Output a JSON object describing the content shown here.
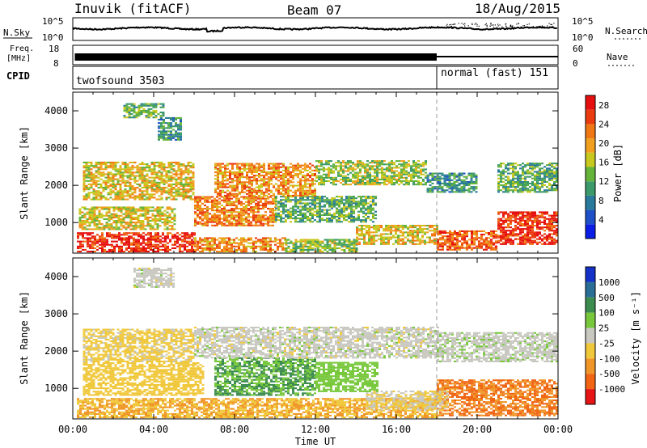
{
  "header": {
    "station": "Inuvik (fitACF)",
    "beam": "Beam 07",
    "date": "18/Aug/2015"
  },
  "nsky_panel": {
    "left_label": "N.Sky",
    "left_ticks": [
      "10^5",
      "10^0"
    ],
    "right_ticks": [
      "10^5",
      "10^0"
    ],
    "right_label": "N.Search"
  },
  "freq_panel": {
    "left_label_1": "Freq.",
    "left_label_2": "[MHz]",
    "left_ticks": [
      "18",
      "8"
    ],
    "right_ticks": [
      "60",
      "0"
    ],
    "right_label": "Nave"
  },
  "cpid_panel": {
    "label": "CPID",
    "modes": [
      {
        "name": "twofsound 3503",
        "start_hour": 0,
        "end_hour": 18
      },
      {
        "name": "normal (fast) 151",
        "start_hour": 18,
        "end_hour": 24
      }
    ]
  },
  "time_axis": {
    "label": "Time UT",
    "ticks": [
      "00:00",
      "04:00",
      "08:00",
      "12:00",
      "16:00",
      "20:00",
      "00:00"
    ],
    "range_hours": [
      0,
      24
    ]
  },
  "chart_data": [
    {
      "type": "heatmap",
      "name": "power-panel",
      "ylabel": "Slant Range [km]",
      "yticks": [
        "1000",
        "2000",
        "3000",
        "4000"
      ],
      "ylim": [
        180,
        4500
      ],
      "xlim_hours": [
        0,
        24
      ],
      "colorbar": {
        "label": "Power [dB]",
        "ticks": [
          "4",
          "8",
          "12",
          "16",
          "20",
          "24",
          "28"
        ],
        "range": [
          0,
          30
        ],
        "colors": [
          "#0a1ee6",
          "#1e50c8",
          "#2a7a9c",
          "#3c9a6a",
          "#64b43c",
          "#c8c81e",
          "#f0a01e",
          "#f07814",
          "#eb3c0f",
          "#e60f0f"
        ]
      },
      "bands": [
        {
          "t0": 0.2,
          "t1": 6.0,
          "r0": 200,
          "r1": 700,
          "v": 27
        },
        {
          "t0": 6.0,
          "t1": 10.5,
          "r0": 200,
          "r1": 600,
          "v": 21
        },
        {
          "t0": 10.5,
          "t1": 14.0,
          "r0": 200,
          "r1": 550,
          "v": 14
        },
        {
          "t0": 14.0,
          "t1": 18.0,
          "r0": 400,
          "r1": 900,
          "v": 18
        },
        {
          "t0": 18.0,
          "t1": 21.0,
          "r0": 250,
          "r1": 750,
          "v": 24
        },
        {
          "t0": 21.0,
          "t1": 24.0,
          "r0": 400,
          "r1": 1300,
          "v": 27
        },
        {
          "t0": 0.3,
          "t1": 5.0,
          "r0": 800,
          "r1": 1400,
          "v": 17
        },
        {
          "t0": 6.0,
          "t1": 10.0,
          "r0": 900,
          "r1": 1700,
          "v": 22
        },
        {
          "t0": 10.0,
          "t1": 15.0,
          "r0": 1000,
          "r1": 1700,
          "v": 12
        },
        {
          "t0": 0.5,
          "t1": 6.0,
          "r0": 1600,
          "r1": 2600,
          "v": 18
        },
        {
          "t0": 7.0,
          "t1": 12.0,
          "r0": 1700,
          "r1": 2600,
          "v": 21
        },
        {
          "t0": 12.0,
          "t1": 17.5,
          "r0": 2000,
          "r1": 2650,
          "v": 15
        },
        {
          "t0": 17.5,
          "t1": 20.0,
          "r0": 1800,
          "r1": 2300,
          "v": 10
        },
        {
          "t0": 21.0,
          "t1": 24.0,
          "r0": 1800,
          "r1": 2600,
          "v": 12
        },
        {
          "t0": 2.5,
          "t1": 4.5,
          "r0": 3800,
          "r1": 4200,
          "v": 13
        },
        {
          "t0": 4.2,
          "t1": 5.4,
          "r0": 3200,
          "r1": 3800,
          "v": 10
        }
      ]
    },
    {
      "type": "heatmap",
      "name": "velocity-panel",
      "ylabel": "Slant Range [km]",
      "yticks": [
        "1000",
        "2000",
        "3000",
        "4000"
      ],
      "ylim": [
        180,
        4500
      ],
      "xlim_hours": [
        0,
        24
      ],
      "colorbar": {
        "label": "Velocity [m s⁻¹]",
        "ticks": [
          "1000",
          "500",
          "100",
          "25",
          "-25",
          "-100",
          "-500",
          "-1000"
        ],
        "colors": [
          "#1432c8",
          "#2a6e96",
          "#3c8c50",
          "#78c83c",
          "#c8c8c0",
          "#f0c83c",
          "#f09628",
          "#f06414",
          "#e61414"
        ]
      },
      "bands": [
        {
          "t0": 0.2,
          "t1": 18.0,
          "r0": 200,
          "r1": 700,
          "v": -100
        },
        {
          "t0": 18.0,
          "t1": 24.0,
          "r0": 250,
          "r1": 1200,
          "v": -500
        },
        {
          "t0": 14.5,
          "t1": 18.5,
          "r0": 400,
          "r1": 900,
          "v": -25
        },
        {
          "t0": 0.5,
          "t1": 6.5,
          "r0": 800,
          "r1": 1700,
          "v": -60
        },
        {
          "t0": 7.0,
          "t1": 12.0,
          "r0": 800,
          "r1": 1800,
          "v": 100
        },
        {
          "t0": 12.0,
          "t1": 15.0,
          "r0": 900,
          "r1": 1700,
          "v": 60
        },
        {
          "t0": 0.5,
          "t1": 6.0,
          "r0": 1700,
          "r1": 2600,
          "v": -40
        },
        {
          "t0": 6.0,
          "t1": 18.0,
          "r0": 1800,
          "r1": 2650,
          "v": 0
        },
        {
          "t0": 18.0,
          "t1": 24.0,
          "r0": 1700,
          "r1": 2500,
          "v": 5
        },
        {
          "t0": 3.0,
          "t1": 5.0,
          "r0": 3700,
          "r1": 4200,
          "v": 0
        }
      ]
    }
  ]
}
